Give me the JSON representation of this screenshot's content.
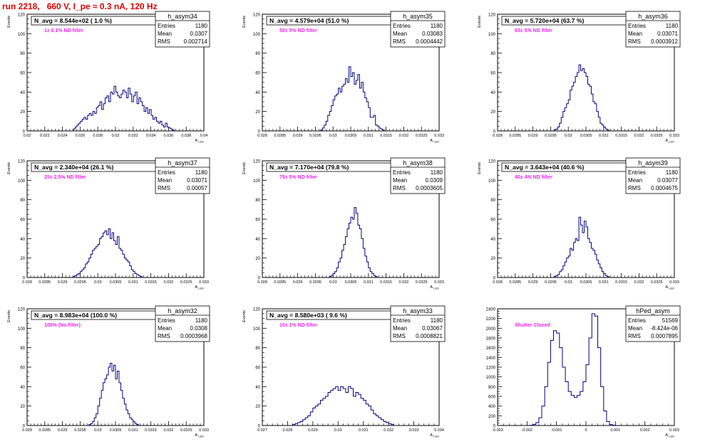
{
  "header": {
    "run_title": "run 2218,   660 V, I_pe ≈ 0.3 nA, 120 Hz"
  },
  "chart_data": [
    {
      "type": "bar",
      "name": "h_asym34",
      "title": "N_avg = 8.544e+02 ( 1.0 %)",
      "annotation": "1± 0.1% ND filter",
      "ylabel": "Events",
      "xlabel": "A_LED",
      "stats": {
        "Entries": "1180",
        "Mean": "0.0307",
        "RMS": "0.002714"
      },
      "xlim": [
        0.02,
        0.041
      ],
      "ylim": [
        0,
        120
      ],
      "xticks": [
        "0.02",
        "0.022",
        "0.024",
        "0.026",
        "0.028",
        "0.03",
        "0.032",
        "0.034",
        "0.036",
        "0.038",
        "0.04"
      ],
      "yticks": [
        "0",
        "20",
        "40",
        "60",
        "80",
        "100",
        "120"
      ],
      "x_start": 0.0255,
      "bin_width": 0.00021,
      "values": [
        2,
        4,
        6,
        8,
        10,
        12,
        14,
        12,
        16,
        18,
        16,
        20,
        18,
        24,
        26,
        30,
        22,
        28,
        34,
        36,
        30,
        40,
        38,
        46,
        40,
        36,
        34,
        38,
        42,
        40,
        34,
        44,
        38,
        30,
        36,
        40,
        28,
        34,
        30,
        26,
        20,
        24,
        18,
        22,
        16,
        12,
        14,
        10,
        8,
        10,
        6,
        4,
        8,
        4,
        3,
        2,
        1
      ]
    },
    {
      "type": "bar",
      "name": "h_asym35",
      "title": "N_avg = 4.579e+04 (51.0 %)",
      "annotation": "50± 5% ND filter",
      "ylabel": "Events",
      "xlabel": "A_LED",
      "stats": {
        "Entries": "1180",
        "Mean": "0.03083",
        "RMS": "0.0004442"
      },
      "xlim": [
        0.028,
        0.033
      ],
      "ylim": [
        0,
        120
      ],
      "xticks": [
        "0.028",
        "0.0285",
        "0.029",
        "0.0295",
        "0.03",
        "0.0305",
        "0.031",
        "0.0315",
        "0.032",
        "0.0325",
        "0.033"
      ],
      "yticks": [
        "0",
        "20",
        "40",
        "60",
        "80",
        "100",
        "120"
      ],
      "x_start": 0.02965,
      "bin_width": 5e-05,
      "values": [
        1,
        3,
        6,
        10,
        16,
        20,
        26,
        32,
        36,
        38,
        44,
        40,
        46,
        48,
        54,
        50,
        66,
        56,
        60,
        48,
        52,
        58,
        44,
        50,
        40,
        34,
        30,
        24,
        14,
        14,
        16,
        6,
        5,
        3,
        2,
        1
      ]
    },
    {
      "type": "bar",
      "name": "h_asym36",
      "title": "N_avg = 5.720e+04 (63.7 %)",
      "annotation": "63± 5% ND filter",
      "ylabel": "Events",
      "xlabel": "A_LED",
      "stats": {
        "Entries": "1180",
        "Mean": "0.03071",
        "RMS": "0.0003912"
      },
      "xlim": [
        0.028,
        0.033
      ],
      "ylim": [
        0,
        120
      ],
      "xticks": [
        "0.028",
        "0.0285",
        "0.029",
        "0.0295",
        "0.03",
        "0.0305",
        "0.031",
        "0.0315",
        "0.032",
        "0.0325",
        "0.033"
      ],
      "yticks": [
        "0",
        "20",
        "40",
        "60",
        "80",
        "100",
        "120"
      ],
      "x_start": 0.0296,
      "bin_width": 5e-05,
      "values": [
        1,
        2,
        4,
        8,
        14,
        20,
        24,
        28,
        32,
        42,
        46,
        50,
        56,
        60,
        68,
        62,
        64,
        60,
        56,
        48,
        46,
        38,
        30,
        28,
        20,
        14,
        8,
        6,
        4,
        2,
        1
      ]
    },
    {
      "type": "bar",
      "name": "h_asym37",
      "title": "N_avg = 2.340e+04 (26.1 %)",
      "annotation": "25± 2.5% ND filter",
      "ylabel": "Events",
      "xlabel": "A_LED",
      "stats": {
        "Entries": "1180",
        "Mean": "0.03071",
        "RMS": "0.00057"
      },
      "xlim": [
        0.028,
        0.033
      ],
      "ylim": [
        0,
        120
      ],
      "xticks": [
        "0.028",
        "0.0285",
        "0.029",
        "0.0295",
        "0.03",
        "0.0305",
        "0.031",
        "0.0315",
        "0.032",
        "0.0325",
        "0.033"
      ],
      "yticks": [
        "0",
        "20",
        "40",
        "60",
        "80",
        "100",
        "120"
      ],
      "x_start": 0.0293,
      "bin_width": 5e-05,
      "values": [
        1,
        2,
        3,
        4,
        6,
        8,
        10,
        14,
        16,
        20,
        24,
        28,
        30,
        32,
        34,
        40,
        42,
        46,
        48,
        44,
        50,
        40,
        46,
        38,
        34,
        42,
        30,
        28,
        24,
        20,
        18,
        16,
        12,
        8,
        6,
        4,
        3,
        2,
        1
      ]
    },
    {
      "type": "bar",
      "name": "h_asym38",
      "title": "N_avg = 7.170e+04 (79.8 %)",
      "annotation": "79± 5% ND filter",
      "ylabel": "Events",
      "xlabel": "A_LED",
      "stats": {
        "Entries": "1180",
        "Mean": "0.0309",
        "RMS": "0.0003605"
      },
      "xlim": [
        0.028,
        0.033
      ],
      "ylim": [
        0,
        120
      ],
      "xticks": [
        "0.028",
        "0.0285",
        "0.029",
        "0.0295",
        "0.03",
        "0.0305",
        "0.031",
        "0.0315",
        "0.032",
        "0.0325",
        "0.033"
      ],
      "yticks": [
        "0",
        "20",
        "40",
        "60",
        "80",
        "100",
        "120"
      ],
      "x_start": 0.0299,
      "bin_width": 5e-05,
      "values": [
        1,
        2,
        4,
        6,
        10,
        16,
        20,
        28,
        34,
        42,
        50,
        56,
        62,
        60,
        72,
        66,
        54,
        50,
        40,
        30,
        22,
        16,
        10,
        6,
        4,
        2,
        1
      ]
    },
    {
      "type": "bar",
      "name": "h_asym39",
      "title": "N_avg = 3.643e+04 (40.6 %)",
      "annotation": "40± 4% ND filter",
      "ylabel": "Events",
      "xlabel": "A_LED",
      "stats": {
        "Entries": "1180",
        "Mean": "0.03077",
        "RMS": "0.0004675"
      },
      "xlim": [
        0.028,
        0.033
      ],
      "ylim": [
        0,
        120
      ],
      "xticks": [
        "0.028",
        "0.0285",
        "0.029",
        "0.0295",
        "0.03",
        "0.0305",
        "0.031",
        "0.0315",
        "0.032",
        "0.0325",
        "0.033"
      ],
      "yticks": [
        "0",
        "20",
        "40",
        "60",
        "80",
        "100",
        "120"
      ],
      "x_start": 0.0296,
      "bin_width": 5e-05,
      "values": [
        1,
        2,
        3,
        6,
        8,
        12,
        16,
        20,
        22,
        30,
        28,
        36,
        40,
        38,
        62,
        54,
        46,
        58,
        52,
        40,
        36,
        30,
        28,
        24,
        18,
        14,
        10,
        6,
        4,
        2,
        1
      ]
    },
    {
      "type": "bar",
      "name": "h_asym32",
      "title": "N_avg = 8.983e+04 (100.0 %)",
      "annotation": "100% (No filter)",
      "ylabel": "Events",
      "xlabel": "A_LED",
      "stats": {
        "Entries": "1180",
        "Mean": "0.0308",
        "RMS": "0.0003968"
      },
      "xlim": [
        0.028,
        0.033
      ],
      "ylim": [
        0,
        120
      ],
      "xticks": [
        "0.028",
        "0.0285",
        "0.029",
        "0.0295",
        "0.03",
        "0.0305",
        "0.031",
        "0.0315",
        "0.032",
        "0.0325",
        "0.033"
      ],
      "yticks": [
        "0",
        "20",
        "40",
        "60",
        "80",
        "100",
        "120"
      ],
      "x_start": 0.02975,
      "bin_width": 5e-05,
      "values": [
        1,
        2,
        4,
        8,
        12,
        20,
        28,
        36,
        44,
        48,
        52,
        60,
        64,
        56,
        62,
        48,
        56,
        44,
        36,
        28,
        22,
        16,
        12,
        8,
        6,
        4,
        2,
        1
      ]
    },
    {
      "type": "bar",
      "name": "h_asym33",
      "title": "N_avg = 8.580e+03 ( 9.6 %)",
      "annotation": "10± 1% ND filter",
      "ylabel": "Events",
      "xlabel": "A_LED",
      "stats": {
        "Entries": "1180",
        "Mean": "0.03067",
        "RMS": "0.0008821"
      },
      "xlim": [
        0.027,
        0.034
      ],
      "ylim": [
        0,
        120
      ],
      "xticks": [
        "0.027",
        "0.028",
        "0.029",
        "0.03",
        "0.031",
        "0.032",
        "0.033",
        "0.034"
      ],
      "yticks": [
        "0",
        "20",
        "40",
        "60",
        "80",
        "100",
        "120"
      ],
      "x_start": 0.0282,
      "bin_width": 0.0001,
      "values": [
        1,
        2,
        3,
        4,
        6,
        8,
        10,
        14,
        18,
        20,
        22,
        26,
        28,
        30,
        34,
        36,
        38,
        40,
        36,
        40,
        38,
        34,
        40,
        38,
        30,
        34,
        32,
        28,
        26,
        22,
        20,
        16,
        12,
        10,
        8,
        6,
        4,
        3,
        2,
        1
      ]
    },
    {
      "type": "line",
      "name": "hPed_asym",
      "title": "",
      "annotation": "Shutter Closed",
      "ylabel": "",
      "xlabel": "A_LED",
      "stats": {
        "Entries": "51569",
        "Mean": "-8.424e-06",
        "RMS": "0.0007895"
      },
      "xlim": [
        -0.003,
        0.003
      ],
      "ylim": [
        0,
        2400
      ],
      "xticks": [
        "-0.003",
        "-0.002",
        "-0.001",
        "0",
        "0.001",
        "0.002",
        "0.003"
      ],
      "yticks": [
        "0",
        "200",
        "400",
        "600",
        "800",
        "1000",
        "1200",
        "1400",
        "1600",
        "1800",
        "2000",
        "2200",
        "2400"
      ],
      "x_start": -0.0019,
      "bin_width": 0.0001,
      "values": [
        5,
        20,
        60,
        160,
        400,
        800,
        1300,
        1750,
        1950,
        1900,
        1600,
        1200,
        900,
        700,
        620,
        580,
        620,
        700,
        900,
        1250,
        1800,
        2300,
        2250,
        1600,
        800,
        300,
        80,
        20,
        5
      ]
    }
  ]
}
